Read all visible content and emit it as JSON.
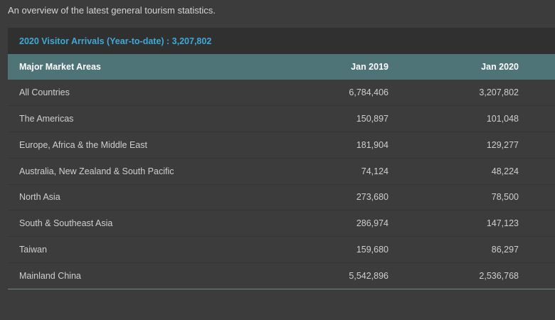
{
  "intro_text": "An overview of the latest general tourism statistics.",
  "caption": "2020 Visitor Arrivals (Year-to-date) : 3,207,802",
  "headers": {
    "area": "Major Market Areas",
    "jan2019": "Jan 2019",
    "jan2020": "Jan 2020"
  },
  "rows": [
    {
      "area": "All Countries",
      "jan2019": "6,784,406",
      "jan2020": "3,207,802"
    },
    {
      "area": "The Americas",
      "jan2019": "150,897",
      "jan2020": "101,048"
    },
    {
      "area": "Europe, Africa & the Middle East",
      "jan2019": "181,904",
      "jan2020": "129,277"
    },
    {
      "area": "Australia, New Zealand & South Pacific",
      "jan2019": "74,124",
      "jan2020": "48,224"
    },
    {
      "area": "North Asia",
      "jan2019": "273,680",
      "jan2020": "78,500"
    },
    {
      "area": "South & Southeast Asia",
      "jan2019": "286,974",
      "jan2020": "147,123"
    },
    {
      "area": "Taiwan",
      "jan2019": "159,680",
      "jan2020": "86,297"
    },
    {
      "area": "Mainland China",
      "jan2019": "5,542,896",
      "jan2020": "2,536,768"
    }
  ],
  "colors": {
    "background": "#3c3c3c",
    "caption_background": "#303030",
    "caption_text": "#3fa9d6",
    "header_background": "#4e7478"
  }
}
